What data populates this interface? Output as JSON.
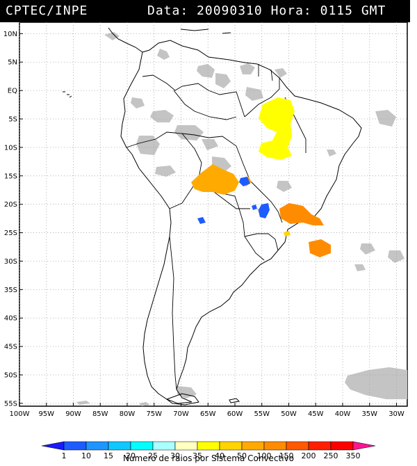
{
  "header": {
    "source": "CPTEC/INPE",
    "date_label": "Data:",
    "date": "20090310",
    "hour_label": "Hora:",
    "hour": "0115",
    "tz": "GMT"
  },
  "map": {
    "lat_labels": [
      "10N",
      "5N",
      "EQ",
      "5S",
      "10S",
      "15S",
      "20S",
      "25S",
      "30S",
      "35S",
      "40S",
      "45S",
      "50S",
      "55S"
    ],
    "lon_labels": [
      "100W",
      "95W",
      "90W",
      "85W",
      "80W",
      "75W",
      "70W",
      "65W",
      "60W",
      "55W",
      "50W",
      "45W",
      "40W",
      "35W",
      "30W"
    ],
    "lat_values": [
      10,
      5,
      0,
      -5,
      -10,
      -15,
      -20,
      -25,
      -30,
      -35,
      -40,
      -45,
      -50,
      -55
    ],
    "lon_values": [
      -100,
      -95,
      -90,
      -85,
      -80,
      -75,
      -70,
      -65,
      -60,
      -55,
      -50,
      -45,
      -40,
      -35,
      -30
    ],
    "extent": {
      "lon": [
        -100,
        -28
      ],
      "lat": [
        -55.5,
        12
      ]
    },
    "colors": {
      "land_outline": "#000000",
      "cloud": "#c0c0c0",
      "grid": "#a0a0a0"
    }
  },
  "legend": {
    "ticks": [
      "1",
      "10",
      "15",
      "20",
      "25",
      "30",
      "35",
      "40",
      "50",
      "100",
      "150",
      "200",
      "250",
      "350"
    ],
    "colors": [
      "#1a1aff",
      "#1e5cff",
      "#1f95ff",
      "#10c8ff",
      "#00ffff",
      "#aaffff",
      "#ffffc0",
      "#ffff00",
      "#ffd400",
      "#ffaa00",
      "#ff8c00",
      "#ff5a00",
      "#ff2000",
      "#ff0000",
      "#ff1493"
    ],
    "caption": "Numero de raios por Sistema Convectivo"
  }
}
